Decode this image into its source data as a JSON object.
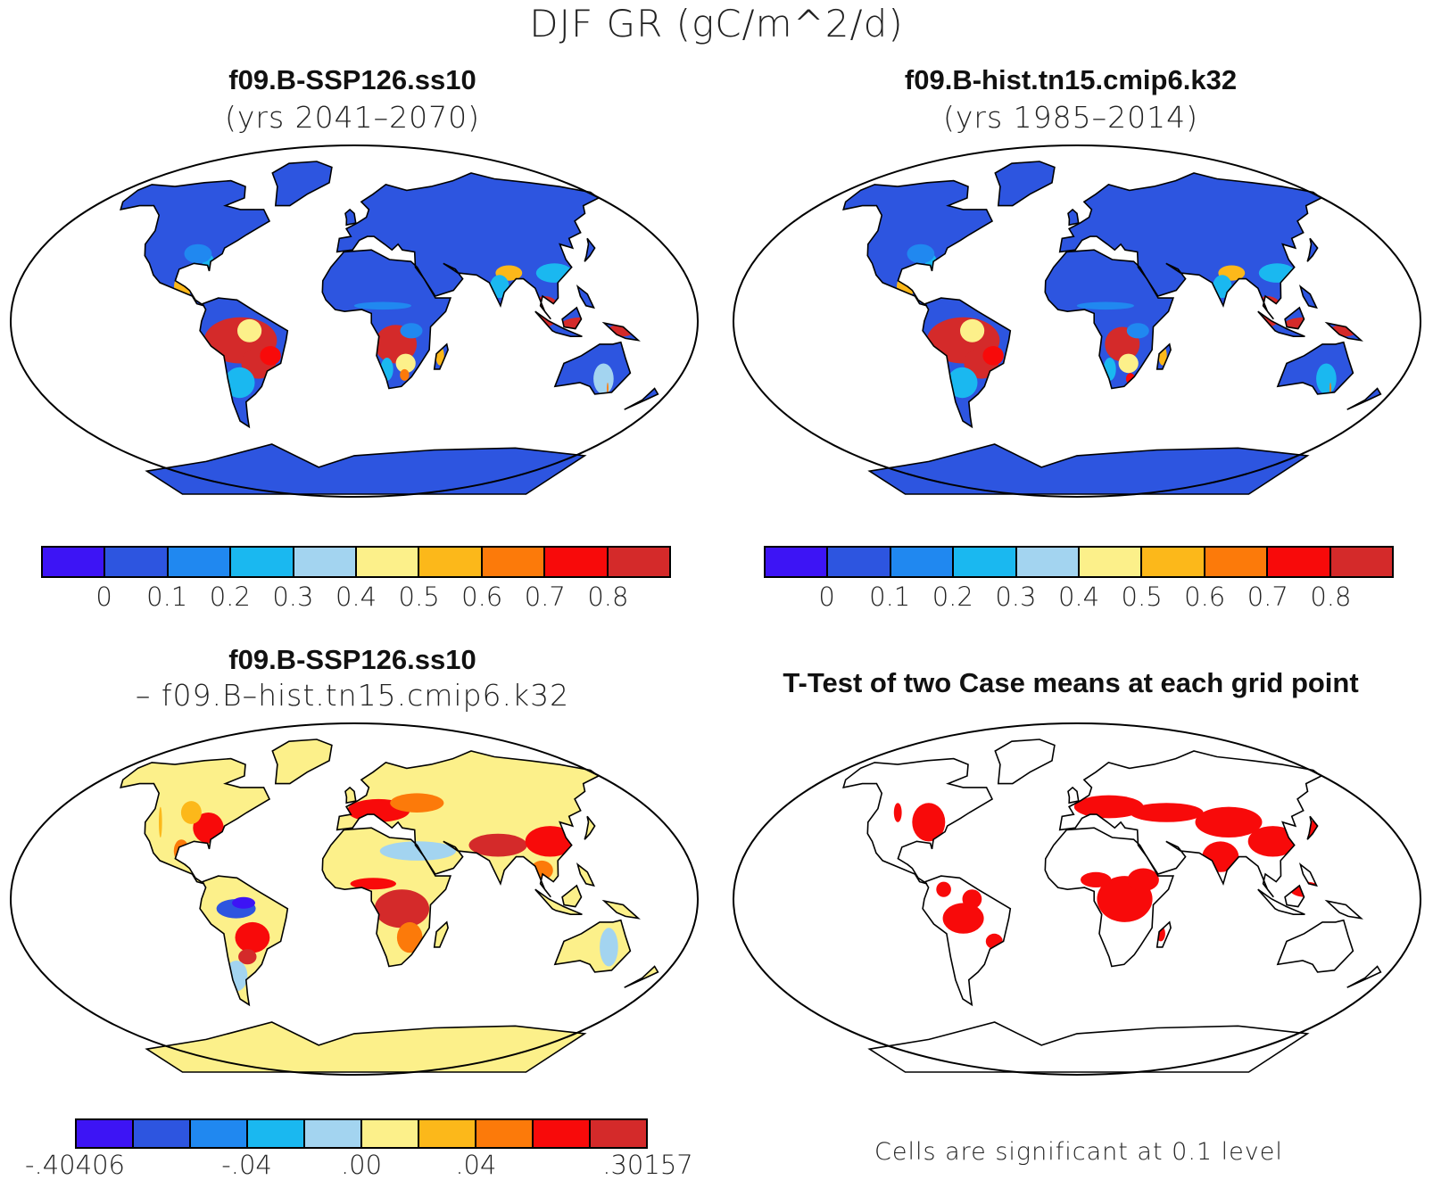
{
  "figure": {
    "title": "DJF GR (gC/m^2/d)"
  },
  "panels": [
    {
      "title": "f09.B-SSP126.ss10",
      "subtitle": "(yrs 2041–2070)",
      "palette": "future"
    },
    {
      "title": "f09.B-hist.tn15.cmip6.k32",
      "subtitle": "(yrs 1985–2014)",
      "palette": "hist"
    },
    {
      "title": "f09.B-SSP126.ss10",
      "subtitle": "– f09.B–hist.tn15.cmip6.k32",
      "palette": "diff"
    },
    {
      "title": "T-Test of two Case means at each grid point",
      "subtitle": "",
      "palette": "ttest"
    }
  ],
  "colorbars": {
    "abs": {
      "colors": [
        "#3d14f5",
        "#2d55e0",
        "#2088f0",
        "#1ab8f0",
        "#a3d4f0",
        "#fcf08a",
        "#fcb81a",
        "#fc7a0a",
        "#f80a0a",
        "#d42a2a"
      ],
      "labels": [
        "0",
        "0.1",
        "0.2",
        "0.3",
        "0.4",
        "0.5",
        "0.6",
        "0.7",
        "0.8"
      ]
    },
    "diff": {
      "colors": [
        "#3d14f5",
        "#2d55e0",
        "#2088f0",
        "#1ab8f0",
        "#a3d4f0",
        "#fcf08a",
        "#fcb81a",
        "#fc7a0a",
        "#f80a0a",
        "#d42a2a"
      ],
      "labels": [
        "-.40406",
        "-.04",
        ".00",
        ".04",
        ".30157"
      ]
    }
  },
  "ttest": {
    "note": "Cells are significant at 0.1 level",
    "sig_color": "#f80a0a"
  }
}
